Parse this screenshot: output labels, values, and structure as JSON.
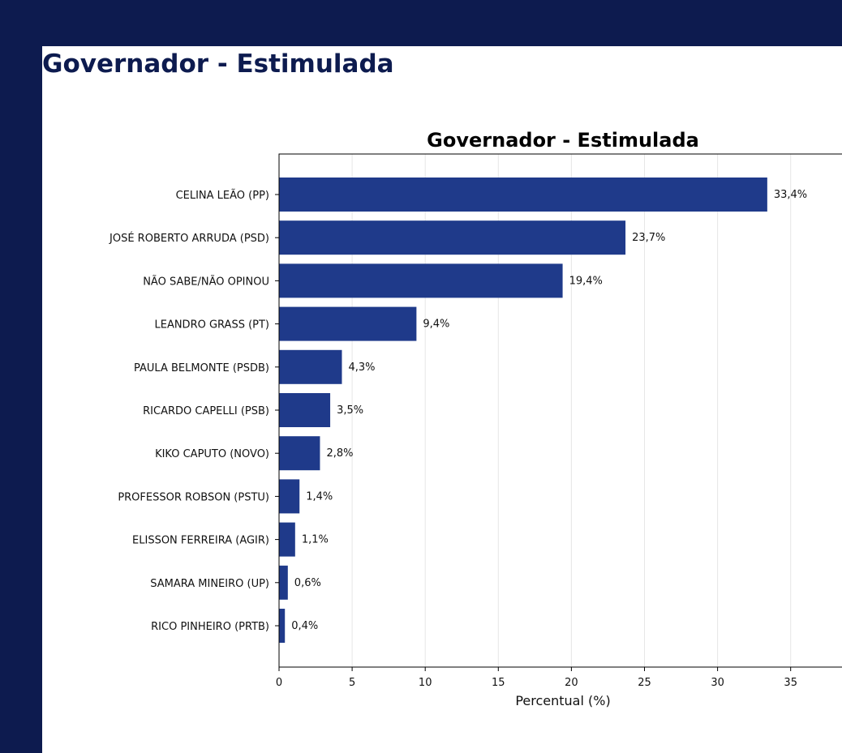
{
  "page": {
    "title": "Governador - Estimulada"
  },
  "colors": {
    "background": "#0d1b4f",
    "bar": "#1f3a8a",
    "heading": "#0d1b4f"
  },
  "chart_data": {
    "type": "bar",
    "orientation": "horizontal",
    "title": "Governador - Estimulada",
    "xlabel": "Percentual (%)",
    "ylabel": "",
    "xlim": [
      0,
      38.5
    ],
    "xticks": [
      0,
      5,
      10,
      15,
      20,
      25,
      30,
      35
    ],
    "grid": "vertical",
    "categories": [
      "CELINA LEÃO (PP)",
      "JOSÉ ROBERTO ARRUDA (PSD)",
      "NÃO SABE/NÃO OPINOU",
      "LEANDRO GRASS (PT)",
      "PAULA BELMONTE (PSDB)",
      "RICARDO CAPELLI (PSB)",
      "KIKO CAPUTO (NOVO)",
      "PROFESSOR ROBSON (PSTU)",
      "ELISSON FERREIRA (AGIR)",
      "SAMARA MINEIRO (UP)",
      "RICO PINHEIRO (PRTB)"
    ],
    "values": [
      33.4,
      23.7,
      19.4,
      9.4,
      4.3,
      3.5,
      2.8,
      1.4,
      1.1,
      0.6,
      0.4
    ],
    "value_labels": [
      "33,4%",
      "23,7%",
      "19,4%",
      "9,4%",
      "4,3%",
      "3,5%",
      "2,8%",
      "1,4%",
      "1,1%",
      "0,6%",
      "0,4%"
    ]
  }
}
